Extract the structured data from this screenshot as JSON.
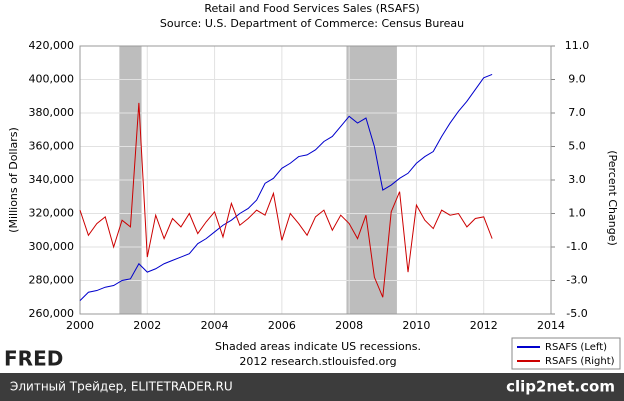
{
  "chart_data": {
    "type": "line",
    "title": "Retail and Food Services Sales (RSAFS)",
    "subtitle": "Source: U.S. Department of Commerce: Census Bureau",
    "ylabel": "(Millions of Dollars)",
    "y2label": "(Percent Change)",
    "notes": [
      "Shaded areas indicate US recessions.",
      "2012 research.stlouisfed.org"
    ],
    "x": [
      2000.0,
      2000.25,
      2000.5,
      2000.75,
      2001.0,
      2001.25,
      2001.5,
      2001.75,
      2002.0,
      2002.25,
      2002.5,
      2002.75,
      2003.0,
      2003.25,
      2003.5,
      2003.75,
      2004.0,
      2004.25,
      2004.5,
      2004.75,
      2005.0,
      2005.25,
      2005.5,
      2005.75,
      2006.0,
      2006.25,
      2006.5,
      2006.75,
      2007.0,
      2007.25,
      2007.5,
      2007.75,
      2008.0,
      2008.25,
      2008.5,
      2008.75,
      2009.0,
      2009.25,
      2009.5,
      2009.75,
      2010.0,
      2010.25,
      2010.5,
      2010.75,
      2011.0,
      2011.25,
      2011.5,
      2011.75,
      2012.0,
      2012.25
    ],
    "series": [
      {
        "name": "RSAFS (Left)",
        "color": "#0000cc",
        "values": [
          268000,
          273000,
          274000,
          276000,
          277000,
          280000,
          281000,
          290000,
          285000,
          287000,
          290000,
          292000,
          294000,
          296000,
          302000,
          305000,
          309000,
          313000,
          316000,
          320000,
          323000,
          328000,
          338000,
          341000,
          347000,
          350000,
          354000,
          355000,
          358000,
          363000,
          366000,
          372000,
          378000,
          374000,
          377000,
          360000,
          334000,
          337000,
          341000,
          344000,
          350000,
          354000,
          357000,
          366000,
          374000,
          381000,
          387000,
          394000,
          401000,
          403000
        ]
      },
      {
        "name": "RSAFS (Right)",
        "color": "#cc0000",
        "axis": "y2",
        "values": [
          1.2,
          -0.3,
          0.4,
          0.8,
          -1.0,
          0.6,
          0.2,
          7.6,
          -1.6,
          0.9,
          -0.5,
          0.7,
          0.2,
          1.0,
          -0.2,
          0.5,
          1.1,
          -0.4,
          1.6,
          0.3,
          0.7,
          1.2,
          0.9,
          2.2,
          -0.6,
          1.0,
          0.4,
          -0.3,
          0.8,
          1.2,
          0.0,
          0.9,
          0.4,
          -0.5,
          0.9,
          -2.8,
          -4.0,
          1.1,
          2.3,
          -2.5,
          1.5,
          0.6,
          0.1,
          1.2,
          0.9,
          1.0,
          0.2,
          0.7,
          0.8,
          -0.5
        ]
      }
    ],
    "recessions": [
      [
        2001.17,
        2001.83
      ],
      [
        2007.92,
        2009.42
      ]
    ],
    "xlim": [
      2000,
      2014
    ],
    "xticks": [
      2000,
      2002,
      2004,
      2006,
      2008,
      2010,
      2012,
      2014
    ],
    "ylim": [
      260000,
      420000
    ],
    "yticks": [
      {
        "value": 260000,
        "label": "260,000"
      },
      {
        "value": 280000,
        "label": "280,000"
      },
      {
        "value": 300000,
        "label": "300,000"
      },
      {
        "value": 320000,
        "label": "320,000"
      },
      {
        "value": 340000,
        "label": "340,000"
      },
      {
        "value": 360000,
        "label": "360,000"
      },
      {
        "value": 380000,
        "label": "380,000"
      },
      {
        "value": 400000,
        "label": "400,000"
      },
      {
        "value": 420000,
        "label": "420,000"
      }
    ],
    "y2lim": [
      -5,
      11
    ],
    "y2ticks": [
      {
        "value": -5,
        "label": "-5.0"
      },
      {
        "value": -3,
        "label": "-3.0"
      },
      {
        "value": -1,
        "label": "-1.0"
      },
      {
        "value": 1,
        "label": "1.0"
      },
      {
        "value": 3,
        "label": "3.0"
      },
      {
        "value": 5,
        "label": "5.0"
      },
      {
        "value": 7,
        "label": "7.0"
      },
      {
        "value": 9,
        "label": "9.0"
      },
      {
        "value": 11,
        "label": "11.0"
      }
    ],
    "grid": true,
    "recession_color": "#bdbdbd"
  },
  "logo": "FRED",
  "footer_left": "Элитный Трейдер, ELITETRADER.RU",
  "footer_right": "clip2net.com"
}
